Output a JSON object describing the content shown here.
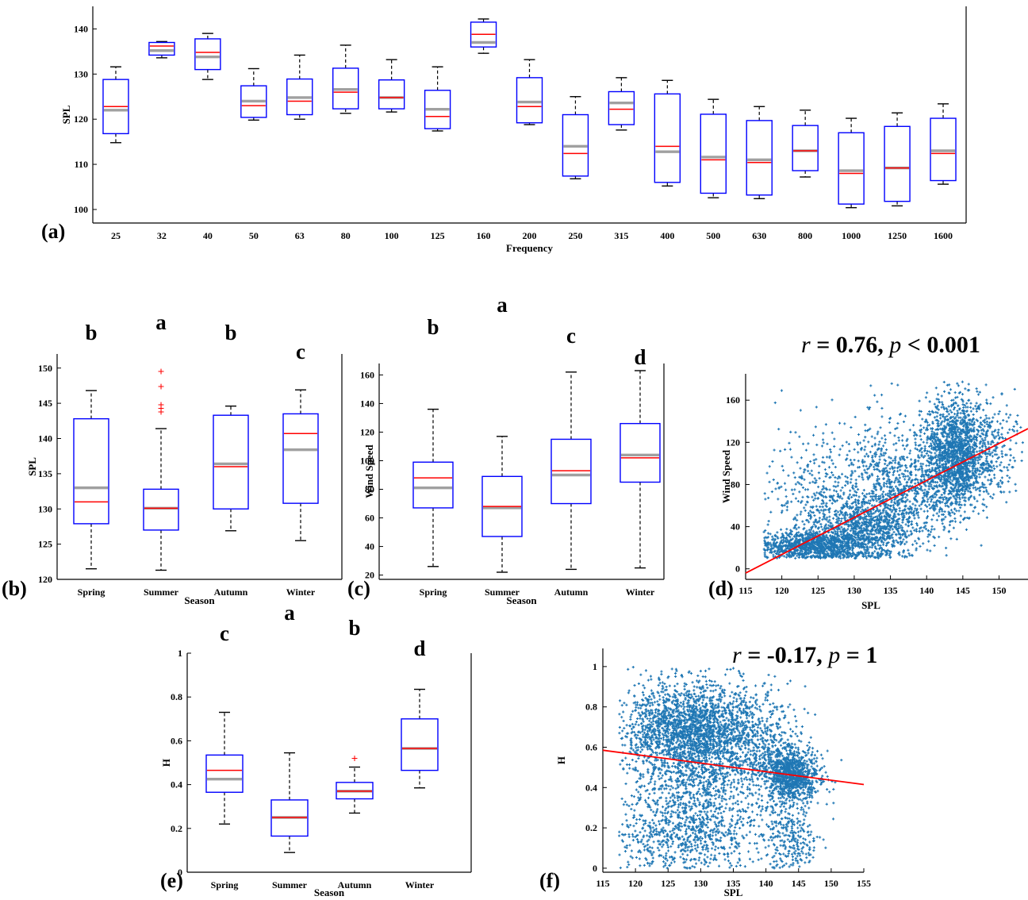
{
  "chart_data": [
    {
      "id": "a",
      "type": "box",
      "panel_label": "(a)",
      "xlabel": "Frequency",
      "ylabel": "SPL",
      "ylim": [
        97,
        145
      ],
      "yticks": [
        "100",
        "110",
        "120",
        "130",
        "140"
      ],
      "categories": [
        "25",
        "32",
        "40",
        "50",
        "63",
        "80",
        "100",
        "125",
        "160",
        "200",
        "250",
        "315",
        "400",
        "500",
        "630",
        "800",
        "1000",
        "1250",
        "1600"
      ],
      "boxes": [
        {
          "wl": 114.8,
          "q1": 116.8,
          "med": 122.8,
          "mean": 122.0,
          "q3": 128.8,
          "wh": 131.6
        },
        {
          "wl": 133.6,
          "q1": 134.2,
          "med": 136.2,
          "mean": 135.2,
          "q3": 137.0,
          "wh": 137.2
        },
        {
          "wl": 128.8,
          "q1": 131.0,
          "med": 134.8,
          "mean": 133.8,
          "q3": 137.8,
          "wh": 139.0
        },
        {
          "wl": 119.8,
          "q1": 120.4,
          "med": 123.0,
          "mean": 124.0,
          "q3": 127.4,
          "wh": 131.2
        },
        {
          "wl": 120.0,
          "q1": 121.0,
          "med": 124.0,
          "mean": 124.8,
          "q3": 128.9,
          "wh": 134.2
        },
        {
          "wl": 121.3,
          "q1": 122.3,
          "med": 126.0,
          "mean": 126.6,
          "q3": 131.3,
          "wh": 136.4
        },
        {
          "wl": 121.6,
          "q1": 122.3,
          "med": 124.8,
          "mean": 124.8,
          "q3": 128.7,
          "wh": 133.2
        },
        {
          "wl": 117.4,
          "q1": 117.9,
          "med": 120.6,
          "mean": 122.2,
          "q3": 126.4,
          "wh": 131.6
        },
        {
          "wl": 134.6,
          "q1": 136.0,
          "med": 138.8,
          "mean": 137.0,
          "q3": 141.5,
          "wh": 142.2
        },
        {
          "wl": 118.8,
          "q1": 119.2,
          "med": 122.8,
          "mean": 123.8,
          "q3": 129.2,
          "wh": 133.2
        },
        {
          "wl": 106.8,
          "q1": 107.4,
          "med": 112.4,
          "mean": 114.0,
          "q3": 121.0,
          "wh": 125.0
        },
        {
          "wl": 117.6,
          "q1": 118.8,
          "med": 122.2,
          "mean": 123.6,
          "q3": 126.1,
          "wh": 129.2
        },
        {
          "wl": 105.2,
          "q1": 106.0,
          "med": 114.0,
          "mean": 112.8,
          "q3": 125.6,
          "wh": 128.6
        },
        {
          "wl": 102.6,
          "q1": 103.6,
          "med": 111.0,
          "mean": 111.6,
          "q3": 121.1,
          "wh": 124.4
        },
        {
          "wl": 102.4,
          "q1": 103.2,
          "med": 110.4,
          "mean": 111.0,
          "q3": 119.7,
          "wh": 122.8
        },
        {
          "wl": 107.2,
          "q1": 108.6,
          "med": 113.0,
          "mean": 113.0,
          "q3": 118.6,
          "wh": 122.0
        },
        {
          "wl": 100.4,
          "q1": 101.2,
          "med": 108.0,
          "mean": 108.6,
          "q3": 117.0,
          "wh": 120.2
        },
        {
          "wl": 100.8,
          "q1": 101.8,
          "med": 109.2,
          "mean": 109.2,
          "q3": 118.4,
          "wh": 121.4
        },
        {
          "wl": 105.6,
          "q1": 106.4,
          "med": 112.4,
          "mean": 113.0,
          "q3": 120.2,
          "wh": 123.4
        }
      ]
    },
    {
      "id": "b",
      "type": "box",
      "panel_label": "(b)",
      "xlabel": "Season",
      "ylabel": "SPL",
      "ylim": [
        120,
        152
      ],
      "yticks": [
        "120",
        "125",
        "130",
        "135",
        "140",
        "145",
        "150"
      ],
      "categories": [
        "Spring",
        "Summer",
        "Autumn",
        "Winter"
      ],
      "letters": [
        "b",
        "a",
        "b",
        "c"
      ],
      "boxes": [
        {
          "wl": 121.5,
          "q1": 127.9,
          "med": 131.0,
          "mean": 133.0,
          "q3": 142.8,
          "wh": 146.8
        },
        {
          "wl": 121.3,
          "q1": 127.0,
          "med": 130.1,
          "mean": 130.1,
          "q3": 132.8,
          "wh": 141.4
        },
        {
          "wl": 126.9,
          "q1": 130.0,
          "med": 136.0,
          "mean": 136.4,
          "q3": 143.3,
          "wh": 144.6
        },
        {
          "wl": 125.5,
          "q1": 130.8,
          "med": 140.7,
          "mean": 138.4,
          "q3": 143.5,
          "wh": 146.9
        }
      ],
      "outliers": [
        {
          "box": 1,
          "values": [
            149.5,
            147.4,
            144.8,
            144.3,
            143.8
          ]
        }
      ]
    },
    {
      "id": "c",
      "type": "box",
      "panel_label": "(c)",
      "xlabel": "Season",
      "ylabel": "Wind Speed",
      "ylim": [
        17,
        168
      ],
      "yticks": [
        "20",
        "40",
        "60",
        "80",
        "100",
        "120",
        "140",
        "160"
      ],
      "categories": [
        "Spring",
        "Summer",
        "Autumn",
        "Winter"
      ],
      "letters": [
        "b",
        "a",
        "c",
        "d"
      ],
      "boxes": [
        {
          "wl": 26,
          "q1": 67,
          "med": 88,
          "mean": 81,
          "q3": 99,
          "wh": 136
        },
        {
          "wl": 22,
          "q1": 47,
          "med": 68,
          "mean": 67,
          "q3": 89,
          "wh": 117
        },
        {
          "wl": 24,
          "q1": 70,
          "med": 93,
          "mean": 90,
          "q3": 115,
          "wh": 162
        },
        {
          "wl": 25,
          "q1": 85,
          "med": 102,
          "mean": 104,
          "q3": 126,
          "wh": 163
        }
      ]
    },
    {
      "id": "d",
      "type": "scatter",
      "panel_label": "(d)",
      "title": "r = 0.76, p < 0.001",
      "title_parts": [
        "r",
        " = 0.76, ",
        "p",
        " < 0.001"
      ],
      "xlabel": "SPL",
      "ylabel": "Wind Speed",
      "xlim": [
        115,
        154
      ],
      "ylim": [
        -10,
        185
      ],
      "xticks": [
        "115",
        "120",
        "125",
        "130",
        "135",
        "140",
        "145",
        "150"
      ],
      "yticks": [
        "0",
        "40",
        "80",
        "120",
        "160"
      ],
      "fit": {
        "x": [
          115,
          154
        ],
        "y": [
          -4,
          133
        ]
      },
      "point_color": "#1f77b4",
      "fit_color": "#ff0000"
    },
    {
      "id": "e",
      "type": "box",
      "panel_label": "(e)",
      "xlabel": "Season",
      "ylabel": "H",
      "ylim": [
        0,
        1
      ],
      "yticks": [
        "0",
        "0.2",
        "0.4",
        "0.6",
        "0.8",
        "1"
      ],
      "categories": [
        "Spring",
        "Summer",
        "Autumn",
        "Winter"
      ],
      "letters": [
        "c",
        "a",
        "b",
        "d"
      ],
      "boxes": [
        {
          "wl": 0.22,
          "q1": 0.365,
          "med": 0.465,
          "mean": 0.425,
          "q3": 0.535,
          "wh": 0.73
        },
        {
          "wl": 0.09,
          "q1": 0.165,
          "med": 0.25,
          "mean": 0.25,
          "q3": 0.33,
          "wh": 0.545
        },
        {
          "wl": 0.27,
          "q1": 0.335,
          "med": 0.37,
          "mean": 0.37,
          "q3": 0.41,
          "wh": 0.48
        },
        {
          "wl": 0.385,
          "q1": 0.465,
          "med": 0.565,
          "mean": 0.565,
          "q3": 0.7,
          "wh": 0.835
        }
      ],
      "outliers": [
        {
          "box": 2,
          "values": [
            0.52
          ]
        }
      ]
    },
    {
      "id": "f",
      "type": "scatter",
      "panel_label": "(f)",
      "title": "r = -0.17, p = 1",
      "title_parts": [
        "r",
        " = -0.17, ",
        "p",
        " = 1"
      ],
      "xlabel": "SPL",
      "ylabel": "H",
      "xlim": [
        115,
        155
      ],
      "ylim": [
        -0.02,
        1.09
      ],
      "xticks": [
        "115",
        "120",
        "125",
        "130",
        "135",
        "140",
        "145",
        "150",
        "155"
      ],
      "yticks": [
        "0",
        "0.2",
        "0.4",
        "0.6",
        "0.8",
        "1"
      ],
      "fit": {
        "x": [
          115,
          155
        ],
        "y": [
          0.585,
          0.415
        ]
      },
      "point_color": "#1f77b4",
      "fit_color": "#ff0000"
    }
  ],
  "colors": {
    "box": "#0000ff",
    "median": "#ff0000",
    "mean": "#a0a0a0",
    "whisker": "#000000",
    "outlier": "#ff0000"
  }
}
